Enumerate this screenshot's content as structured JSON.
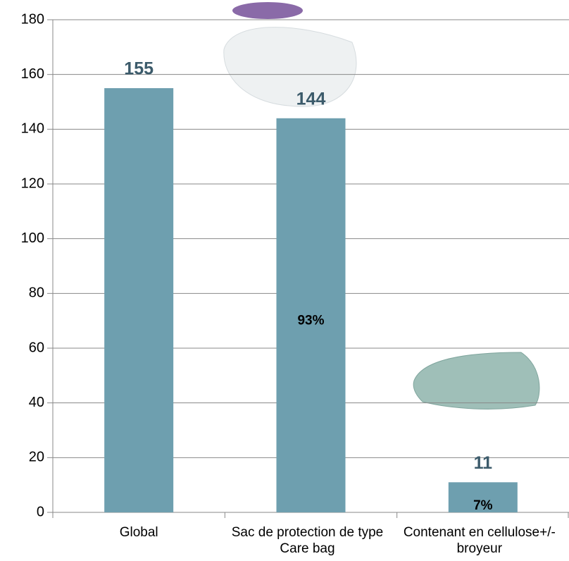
{
  "chart_data": {
    "type": "bar",
    "categories": [
      "Global",
      "Sac de protection de type Care bag",
      "Contenant en cellulose+/-broyeur"
    ],
    "values": [
      155,
      144,
      11
    ],
    "percent_labels": [
      null,
      "93%",
      "7%"
    ],
    "color": "#6e9faf",
    "ylim": [
      0,
      180
    ],
    "yticks": [
      0,
      20,
      40,
      60,
      80,
      100,
      120,
      140,
      160,
      180
    ],
    "grid": true
  }
}
